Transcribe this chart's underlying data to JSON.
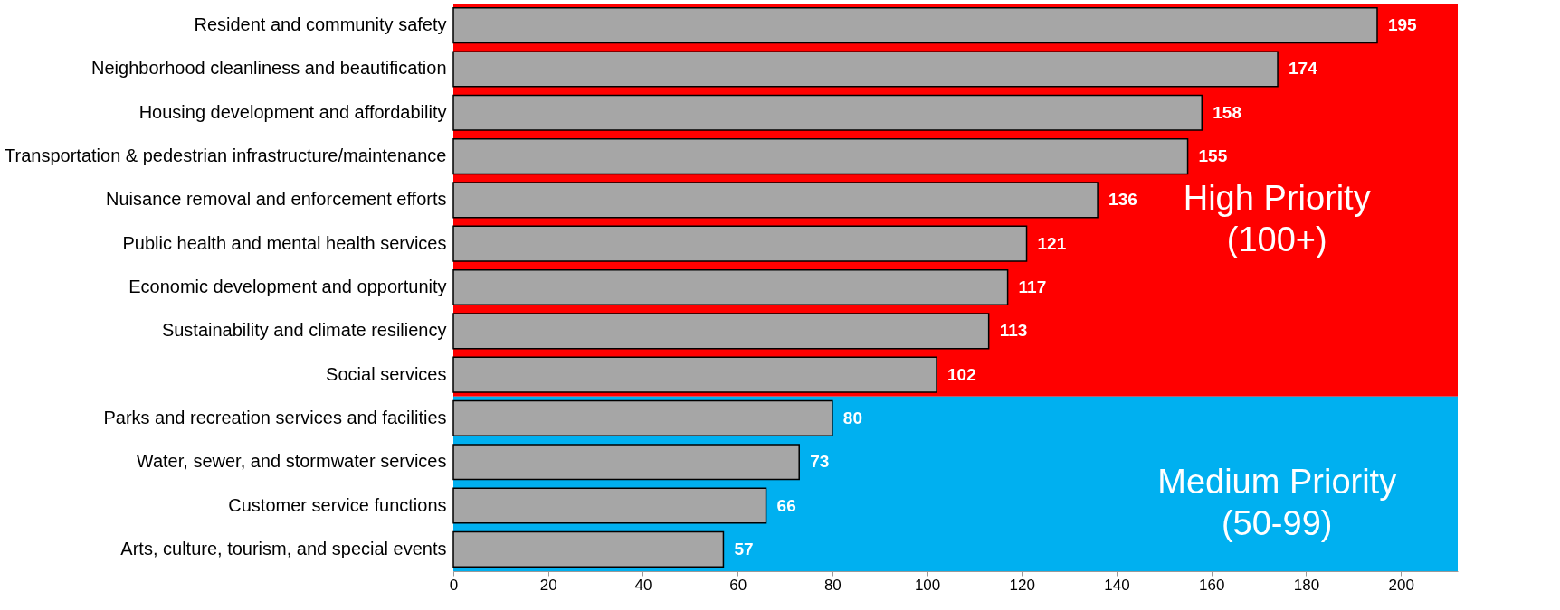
{
  "chart_data": {
    "type": "bar",
    "orientation": "horizontal",
    "categories": [
      "Resident and community safety",
      "Neighborhood cleanliness and beautification",
      "Housing development and affordability",
      "Transportation & pedestrian infrastructure/maintenance",
      "Nuisance removal and enforcement efforts",
      "Public health and mental health services",
      "Economic development and opportunity",
      "Sustainability and climate resiliency",
      "Social services",
      "Parks and recreation services and facilities",
      "Water, sewer, and stormwater services",
      "Customer service functions",
      "Arts, culture, tourism, and special events"
    ],
    "values": [
      195,
      174,
      158,
      155,
      136,
      121,
      117,
      113,
      102,
      80,
      73,
      66,
      57
    ],
    "color": "#a6a6a6",
    "xlim": [
      0,
      212
    ],
    "xticks": [
      0,
      20,
      40,
      60,
      80,
      100,
      120,
      140,
      160,
      180,
      200
    ],
    "data_labels": true,
    "bands": [
      {
        "axis": "y",
        "from": "Resident and community safety",
        "to": "Social services",
        "label": "High Priority\n(100+)",
        "color": "#ff0000"
      },
      {
        "axis": "y",
        "from": "Parks and recreation services and facilities",
        "to": "Arts, culture, tourism, and special events",
        "label": "Medium Priority\n(50-99)",
        "color": "#00b0f0"
      }
    ]
  }
}
